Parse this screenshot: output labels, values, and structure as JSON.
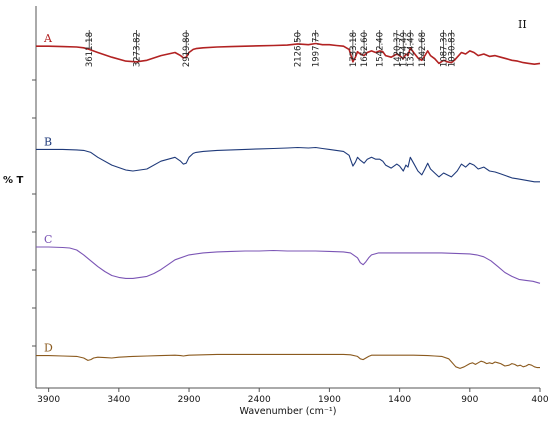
{
  "chart_data": {
    "type": "line",
    "panel_label": "II",
    "xlabel": "Wavenumber (cm⁻¹)",
    "ylabel": "% T",
    "xlim": [
      3990,
      400
    ],
    "x_ticks": [
      3900,
      3400,
      2900,
      2400,
      1900,
      1400,
      900,
      400
    ],
    "x_tick_labels": [
      "3900",
      "3400",
      "2900",
      "2400",
      "1900",
      "1400",
      "900",
      "400"
    ],
    "ylim": [
      0,
      100
    ],
    "series": [
      {
        "name": "A",
        "color": "#b22222",
        "x": [
          3990,
          3900,
          3800,
          3700,
          3650,
          3611,
          3550,
          3450,
          3350,
          3274,
          3200,
          3100,
          3000,
          2960,
          2940,
          2920,
          2900,
          2870,
          2850,
          2800,
          2700,
          2600,
          2500,
          2400,
          2300,
          2200,
          2126,
          2050,
          1998,
          1950,
          1900,
          1850,
          1800,
          1760,
          1733,
          1715,
          1700,
          1680,
          1653,
          1630,
          1600,
          1570,
          1542,
          1520,
          1500,
          1460,
          1420,
          1400,
          1374,
          1355,
          1340,
          1324,
          1300,
          1270,
          1242,
          1220,
          1200,
          1180,
          1150,
          1120,
          1087,
          1060,
          1031,
          1010,
          990,
          960,
          930,
          900,
          870,
          840,
          800,
          760,
          720,
          680,
          640,
          600,
          560,
          520,
          480,
          440,
          400
        ],
        "y": [
          92,
          92,
          91.5,
          91,
          90,
          88,
          84,
          78,
          73,
          72,
          74,
          80,
          84,
          80,
          77,
          78,
          84,
          88,
          89,
          90,
          91,
          91.5,
          92,
          92.5,
          93,
          93.5,
          95,
          94,
          95.5,
          94,
          94,
          93,
          92,
          88,
          72,
          78,
          85,
          82,
          80,
          84,
          86,
          84,
          86,
          85,
          80,
          78,
          82,
          80,
          76,
          82,
          80,
          90,
          84,
          77,
          74,
          80,
          86,
          80,
          76,
          70,
          74,
          72,
          71,
          74,
          78,
          84,
          82,
          86,
          84,
          80,
          82,
          79,
          80,
          78,
          76,
          74,
          73,
          71,
          70,
          69,
          70
        ]
      },
      {
        "name": "B",
        "color": "#1f3a7a",
        "x": [
          3990,
          3900,
          3800,
          3700,
          3650,
          3600,
          3550,
          3450,
          3350,
          3300,
          3200,
          3100,
          3000,
          2960,
          2940,
          2920,
          2900,
          2870,
          2850,
          2800,
          2700,
          2600,
          2500,
          2400,
          2300,
          2200,
          2126,
          2050,
          1998,
          1950,
          1900,
          1850,
          1800,
          1760,
          1733,
          1715,
          1700,
          1680,
          1653,
          1630,
          1600,
          1570,
          1542,
          1520,
          1500,
          1460,
          1420,
          1400,
          1374,
          1355,
          1340,
          1324,
          1300,
          1270,
          1242,
          1220,
          1200,
          1180,
          1150,
          1120,
          1087,
          1060,
          1031,
          1010,
          990,
          960,
          930,
          900,
          870,
          840,
          800,
          760,
          720,
          680,
          640,
          600,
          560,
          520,
          480,
          440,
          400
        ],
        "y": [
          72,
          72,
          72,
          71.5,
          71,
          69,
          64,
          56,
          51,
          50,
          52,
          60,
          64,
          60,
          57,
          58,
          64,
          68,
          69,
          70,
          71,
          71.5,
          72,
          72.5,
          73,
          73.5,
          74,
          73.5,
          74,
          73,
          72,
          71,
          70,
          66,
          55,
          59,
          64,
          61,
          58,
          62,
          64,
          62,
          62,
          60,
          56,
          53,
          57,
          55,
          50,
          56,
          54,
          64,
          58,
          50,
          46,
          52,
          58,
          52,
          48,
          44,
          48,
          46,
          44,
          47,
          50,
          57,
          54,
          58,
          56,
          52,
          54,
          50,
          49,
          47,
          45,
          43,
          42,
          41,
          40,
          39,
          39
        ]
      },
      {
        "name": "C",
        "color": "#7b55b5",
        "x": [
          3990,
          3900,
          3800,
          3750,
          3700,
          3650,
          3600,
          3550,
          3500,
          3450,
          3400,
          3350,
          3300,
          3250,
          3200,
          3150,
          3100,
          3050,
          3000,
          2900,
          2800,
          2700,
          2600,
          2500,
          2400,
          2300,
          2200,
          2100,
          2000,
          1900,
          1800,
          1750,
          1700,
          1680,
          1660,
          1640,
          1620,
          1600,
          1550,
          1500,
          1400,
          1300,
          1200,
          1100,
          1000,
          900,
          850,
          800,
          750,
          700,
          650,
          600,
          550,
          500,
          450,
          400
        ],
        "y": [
          52,
          52,
          51.5,
          51,
          49,
          44,
          38,
          32,
          27,
          23,
          21,
          20,
          20,
          21,
          22,
          25,
          29,
          34,
          39,
          44,
          46,
          47,
          47.5,
          48,
          48,
          48.5,
          48,
          48,
          48,
          47.5,
          47,
          46,
          41,
          36,
          34,
          37,
          41,
          44,
          46,
          46,
          46,
          46,
          46,
          46,
          45.5,
          45,
          44,
          42,
          38,
          32,
          26,
          22,
          19,
          18,
          17,
          15
        ]
      },
      {
        "name": "D",
        "color": "#8b5a1e",
        "x": [
          3990,
          3900,
          3800,
          3700,
          3650,
          3620,
          3600,
          3580,
          3550,
          3500,
          3450,
          3400,
          3350,
          3300,
          3200,
          3100,
          3000,
          2960,
          2940,
          2920,
          2900,
          2800,
          2700,
          2600,
          2500,
          2400,
          2300,
          2200,
          2100,
          2000,
          1900,
          1800,
          1750,
          1700,
          1680,
          1660,
          1640,
          1620,
          1600,
          1500,
          1400,
          1300,
          1200,
          1150,
          1100,
          1050,
          1030,
          1000,
          970,
          940,
          900,
          880,
          860,
          840,
          820,
          800,
          780,
          760,
          740,
          720,
          700,
          680,
          650,
          620,
          600,
          580,
          560,
          540,
          520,
          500,
          480,
          460,
          440,
          420,
          400
        ],
        "y": [
          18,
          18,
          17.5,
          17,
          15,
          12,
          13,
          15,
          16,
          15.5,
          15,
          16,
          16.5,
          17,
          17.5,
          18,
          18.5,
          18,
          17.5,
          18,
          18.5,
          19,
          19.5,
          19.5,
          19.5,
          19.5,
          19.5,
          19.5,
          19.5,
          19.5,
          19.5,
          19.5,
          19,
          17,
          14,
          13,
          15,
          17,
          18.5,
          18.5,
          18.5,
          18.5,
          18,
          17.5,
          17,
          14,
          10,
          4,
          2,
          4,
          8,
          9,
          7,
          9,
          11,
          10,
          8,
          9,
          8,
          10,
          9,
          8,
          5,
          6,
          8,
          7,
          5,
          6,
          4,
          5,
          7,
          6,
          4,
          3,
          3
        ]
      }
    ],
    "annotations": [
      {
        "series": "A",
        "x": 3611,
        "y": 88,
        "text": "3611.18"
      },
      {
        "series": "A",
        "x": 3274,
        "y": 72,
        "text": "3273.82"
      },
      {
        "series": "A",
        "x": 2920,
        "y": 78,
        "text": "2919.80"
      },
      {
        "series": "A",
        "x": 2126,
        "y": 95,
        "text": "2126.50"
      },
      {
        "series": "A",
        "x": 1998,
        "y": 95.5,
        "text": "1997.73"
      },
      {
        "series": "A",
        "x": 1733,
        "y": 72,
        "text": "1733.18"
      },
      {
        "series": "A",
        "x": 1653,
        "y": 80,
        "text": "1652.60"
      },
      {
        "series": "A",
        "x": 1542,
        "y": 86,
        "text": "1542.40"
      },
      {
        "series": "A",
        "x": 1420,
        "y": 78,
        "text": "1420.37"
      },
      {
        "series": "A",
        "x": 1374,
        "y": 76,
        "text": "1374.49"
      },
      {
        "series": "A",
        "x": 1324,
        "y": 90,
        "text": "1324.49"
      },
      {
        "series": "A",
        "x": 1242,
        "y": 74,
        "text": "1242.68"
      },
      {
        "series": "A",
        "x": 1087,
        "y": 74,
        "text": "1087.39"
      },
      {
        "series": "A",
        "x": 1031,
        "y": 71,
        "text": "1030.83"
      }
    ],
    "grid": false,
    "legend": "inline-left"
  }
}
